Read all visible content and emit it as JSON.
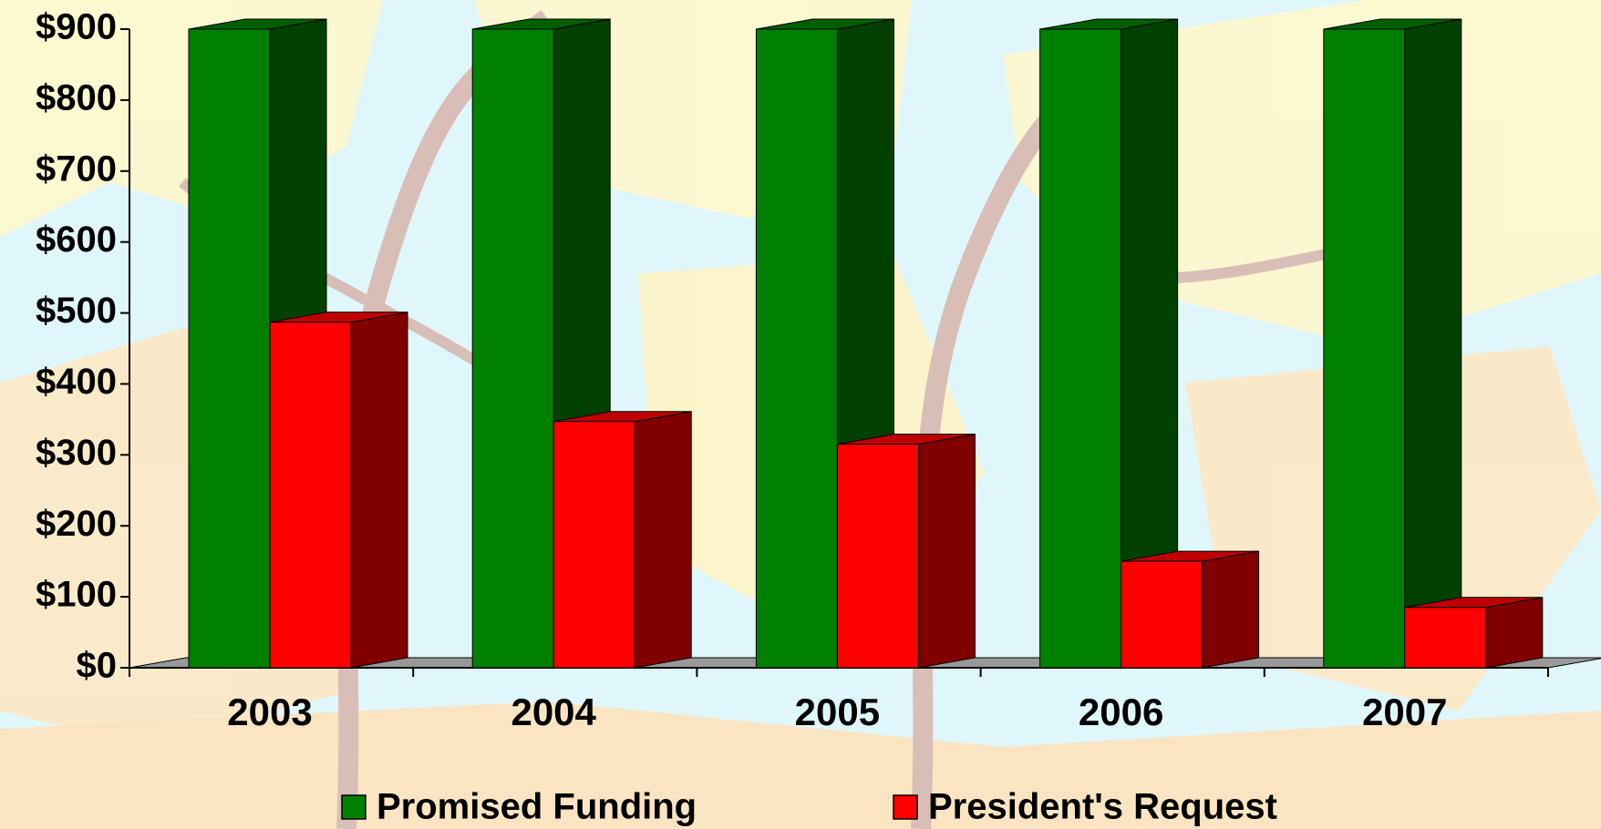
{
  "chart_data": {
    "type": "bar3d",
    "categories": [
      "2003",
      "2004",
      "2005",
      "2006",
      "2007"
    ],
    "series": [
      {
        "name": "Promised Funding",
        "color": "#008000",
        "values": [
          900,
          900,
          900,
          900,
          900
        ]
      },
      {
        "name": "President's Request",
        "color": "#ff0000",
        "values": [
          487,
          347,
          315,
          150,
          85
        ]
      }
    ],
    "ylim": [
      0,
      900
    ],
    "yticks": [
      {
        "value": 0,
        "label": "$0"
      },
      {
        "value": 100,
        "label": "$100"
      },
      {
        "value": 200,
        "label": "$200"
      },
      {
        "value": 300,
        "label": "$300"
      },
      {
        "value": 400,
        "label": "$400"
      },
      {
        "value": 500,
        "label": "$500"
      },
      {
        "value": 600,
        "label": "$600"
      },
      {
        "value": 700,
        "label": "$700"
      },
      {
        "value": 800,
        "label": "$800"
      },
      {
        "value": 900,
        "label": "$900"
      }
    ]
  }
}
